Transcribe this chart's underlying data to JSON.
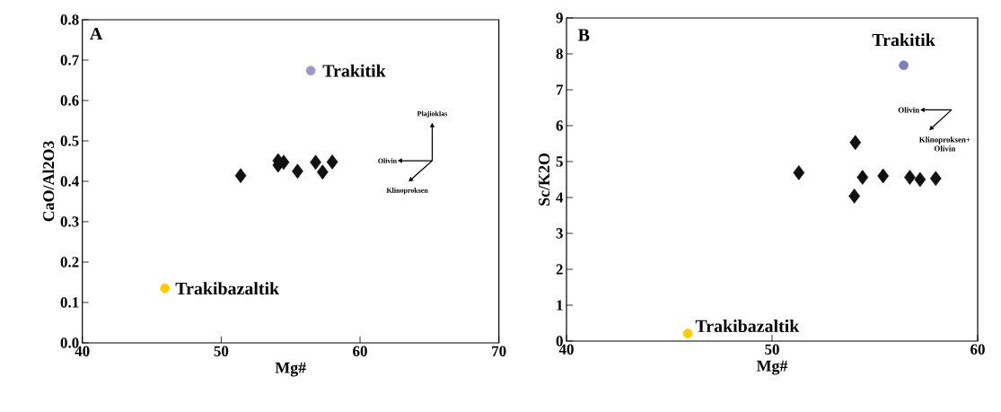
{
  "chart_data": [
    {
      "type": "scatter",
      "xlabel": "Mg#",
      "ylabel": "CaO/Al2O3",
      "xlim": [
        40,
        70
      ],
      "ylim": [
        0,
        0.8
      ],
      "xticks": [
        40,
        50,
        60,
        70
      ],
      "yticks": [
        {
          "value": 0,
          "label": "0.0"
        },
        0.1,
        0.2,
        0.3,
        0.4,
        0.5,
        0.6,
        0.7,
        0.8
      ],
      "annotations": [
        "A",
        "Plajioklas",
        "Olivin",
        "Klinoproksen"
      ],
      "series": [
        {
          "color": "#111111",
          "marker": "diamond",
          "x": [
            51.4,
            54.1,
            54.5,
            54.1,
            55.5,
            56.8,
            57.3,
            58.0
          ],
          "values": [
            0.414,
            0.451,
            0.447,
            0.44,
            0.425,
            0.447,
            0.423,
            0.448
          ]
        },
        {
          "name": "Trakitik",
          "color": "#9999cc",
          "marker": "circle",
          "x": [
            56.45
          ],
          "values": [
            0.674
          ]
        },
        {
          "name": "Trakibazaltik",
          "color": "#ffcc00",
          "marker": "circle",
          "x": [
            45.95
          ],
          "values": [
            0.135
          ]
        }
      ]
    },
    {
      "type": "scatter",
      "xlabel": "Mg#",
      "ylabel": "Sc/K2O",
      "xlim": [
        40,
        60
      ],
      "ylim": [
        0,
        9
      ],
      "xticks": [
        40,
        50,
        60
      ],
      "yticks": [
        0,
        1,
        2,
        3,
        4,
        5,
        6,
        7,
        8,
        9
      ],
      "annotations": [
        "B",
        "Olivin",
        "Klinoproksen+ Olivin"
      ],
      "series": [
        {
          "color": "#111111",
          "marker": "diamond",
          "x": [
            51.3,
            54.05,
            54.0,
            54.4,
            55.4,
            56.7,
            57.2,
            57.96
          ],
          "values": [
            4.69,
            5.53,
            4.04,
            4.56,
            4.6,
            4.56,
            4.5,
            4.53
          ]
        },
        {
          "name": "Trakitik",
          "color": "#7f7fbf",
          "marker": "circle",
          "x": [
            56.4
          ],
          "values": [
            7.68
          ]
        },
        {
          "name": "Trakibazaltik",
          "color": "#ffcc00",
          "marker": "circle",
          "x": [
            45.9
          ],
          "values": [
            0.21
          ]
        }
      ]
    }
  ]
}
